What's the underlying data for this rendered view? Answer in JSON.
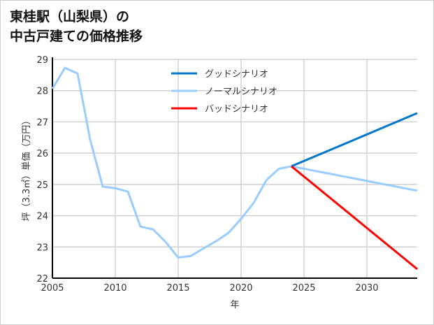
{
  "chart_data": {
    "type": "line",
    "title_lines": [
      "東桂駅（山梨県）の",
      "中古戸建ての価格推移"
    ],
    "xlabel": "年",
    "ylabel": "坪（3.3㎡）単価（万円）",
    "xlim": [
      2005,
      2034
    ],
    "ylim": [
      22,
      29
    ],
    "xticks": [
      2005,
      2010,
      2015,
      2020,
      2025,
      2030
    ],
    "yticks": [
      22,
      23,
      24,
      25,
      26,
      27,
      28,
      29
    ],
    "grid": true,
    "legend_position": "top-center",
    "series": [
      {
        "name": "グッドシナリオ",
        "color": "#0077cc",
        "x": [
          2024,
          2034
        ],
        "y": [
          25.58,
          27.28
        ]
      },
      {
        "name": "ノーマルシナリオ",
        "color": "#99ccff",
        "x": [
          2005,
          2006,
          2007,
          2008,
          2009,
          2010,
          2011,
          2012,
          2013,
          2014,
          2015,
          2016,
          2017,
          2018,
          2019,
          2020,
          2021,
          2022,
          2023,
          2024,
          2034
        ],
        "y": [
          28.06,
          28.73,
          28.55,
          26.43,
          24.93,
          24.88,
          24.77,
          23.65,
          23.56,
          23.16,
          22.66,
          22.71,
          22.95,
          23.18,
          23.45,
          23.9,
          24.41,
          25.13,
          25.5,
          25.58,
          24.8
        ]
      },
      {
        "name": "バッドシナリオ",
        "color": "#ff0000",
        "x": [
          2024,
          2034
        ],
        "y": [
          25.58,
          22.29
        ]
      }
    ]
  }
}
